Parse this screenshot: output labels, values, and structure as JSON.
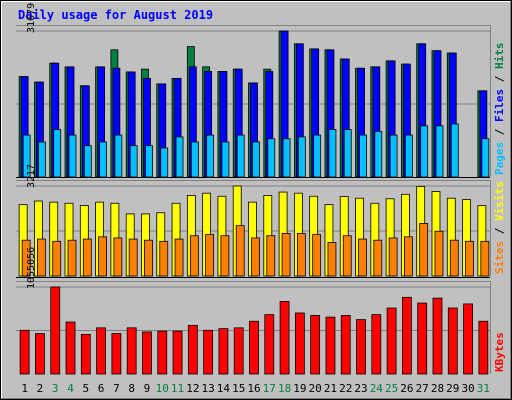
{
  "title": "Daily usage for August 2019",
  "colors": {
    "page_bg": "#C0C0C0",
    "frame": "#000000",
    "title": "#0000FF",
    "hits": "#008040",
    "files": "#0000FF",
    "pages": "#00C0FF",
    "visits": "#FFFF00",
    "sites": "#FF8000",
    "kbytes": "#FF0000",
    "weekend_day": "#008040",
    "weekday": "#000000"
  },
  "chart_data": {
    "type": "bar",
    "title": "Daily usage for August 2019",
    "categories": [
      "1",
      "2",
      "3",
      "4",
      "5",
      "6",
      "7",
      "8",
      "9",
      "10",
      "11",
      "12",
      "13",
      "14",
      "15",
      "16",
      "17",
      "18",
      "19",
      "20",
      "21",
      "22",
      "23",
      "24",
      "25",
      "26",
      "27",
      "28",
      "29",
      "30",
      "31"
    ],
    "weekend_days": [
      "3",
      "4",
      "10",
      "11",
      "17",
      "18",
      "24",
      "25",
      "31"
    ],
    "panels": [
      {
        "name": "pages-files-hits",
        "max_label": "31679",
        "ymax": 31679,
        "legend": [
          {
            "text": "Pages",
            "color": "#00C0FF"
          },
          {
            "text": " / ",
            "color": "#000000"
          },
          {
            "text": "Files",
            "color": "#0000FF"
          },
          {
            "text": " / ",
            "color": "#000000"
          },
          {
            "text": "Hits",
            "color": "#008040"
          }
        ],
        "series": [
          {
            "name": "Hits",
            "color": "#008040",
            "values": [
              21800,
              20600,
              24700,
              23900,
              19800,
              23900,
              27600,
              22800,
              23400,
              20200,
              21400,
              28300,
              23900,
              22900,
              23400,
              20400,
              23400,
              31679,
              28900,
              27800,
              27600,
              25600,
              23600,
              23900,
              25200,
              24500,
              28900,
              27400,
              26900,
              null,
              18700
            ]
          },
          {
            "name": "Files",
            "color": "#0000FF",
            "values": [
              21800,
              20600,
              24700,
              23900,
              19800,
              23900,
              23600,
              22800,
              21400,
              20200,
              21400,
              23900,
              22900,
              22900,
              23400,
              20400,
              22900,
              31679,
              28900,
              27800,
              27600,
              25600,
              23600,
              23900,
              25200,
              24500,
              28900,
              27400,
              26900,
              null,
              18700
            ]
          },
          {
            "name": "Pages",
            "color": "#00C0FF",
            "values": [
              9100,
              7600,
              10300,
              9100,
              6800,
              7600,
              9100,
              6800,
              6800,
              6300,
              8700,
              7600,
              9100,
              7600,
              9100,
              7600,
              8300,
              8300,
              8700,
              9100,
              10300,
              10300,
              9100,
              9900,
              9100,
              9100,
              11100,
              11100,
              11500,
              null,
              8300
            ]
          }
        ]
      },
      {
        "name": "sites-visits",
        "max_label": "3217",
        "ymax": 3217,
        "legend": [
          {
            "text": "Sites",
            "color": "#FF8000"
          },
          {
            "text": " / ",
            "color": "#000000"
          },
          {
            "text": "Visits",
            "color": "#FFFF00"
          }
        ],
        "series": [
          {
            "name": "Visits",
            "color": "#FFFF00",
            "values": [
              2550,
              2680,
              2640,
              2600,
              2520,
              2640,
              2600,
              2220,
              2220,
              2260,
              2600,
              2880,
              2960,
              2850,
              3217,
              2640,
              2880,
              3000,
              2960,
              2850,
              2550,
              2840,
              2780,
              2600,
              2760,
              2920,
              3200,
              3020,
              2780,
              2730,
              2520
            ]
          },
          {
            "name": "Sites",
            "color": "#FF8000",
            "values": [
              1280,
              1320,
              1240,
              1280,
              1320,
              1400,
              1360,
              1320,
              1280,
              1240,
              1320,
              1440,
              1480,
              1440,
              1800,
              1360,
              1440,
              1520,
              1520,
              1480,
              1200,
              1440,
              1320,
              1280,
              1360,
              1400,
              1880,
              1600,
              1280,
              1240,
              1240
            ]
          }
        ]
      },
      {
        "name": "kbytes",
        "max_label": "1055056",
        "ymax": 1055056,
        "legend": [
          {
            "text": "KBytes",
            "color": "#FF0000"
          }
        ],
        "series": [
          {
            "name": "KBytes",
            "color": "#FF0000",
            "values": [
              530000,
              490000,
              1055056,
              630000,
              480000,
              560000,
              490000,
              560000,
              510000,
              520000,
              520000,
              590000,
              530000,
              550000,
              560000,
              640000,
              720000,
              880000,
              740000,
              710000,
              690000,
              710000,
              660000,
              720000,
              800000,
              930000,
              860000,
              920000,
              800000,
              850000,
              640000
            ]
          }
        ]
      }
    ]
  }
}
